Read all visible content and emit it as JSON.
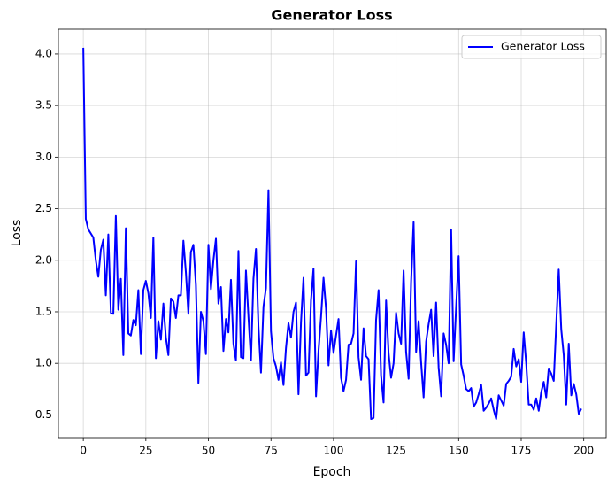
{
  "chart_data": {
    "type": "line",
    "title": "Generator Loss",
    "xlabel": "Epoch",
    "ylabel": "Loss",
    "x": [
      0,
      1,
      2,
      3,
      4,
      5,
      6,
      7,
      8,
      9,
      10,
      11,
      12,
      13,
      14,
      15,
      16,
      17,
      18,
      19,
      20,
      21,
      22,
      23,
      24,
      25,
      26,
      27,
      28,
      29,
      30,
      31,
      32,
      33,
      34,
      35,
      36,
      37,
      38,
      39,
      40,
      41,
      42,
      43,
      44,
      45,
      46,
      47,
      48,
      49,
      50,
      51,
      52,
      53,
      54,
      55,
      56,
      57,
      58,
      59,
      60,
      61,
      62,
      63,
      64,
      65,
      66,
      67,
      68,
      69,
      70,
      71,
      72,
      73,
      74,
      75,
      76,
      77,
      78,
      79,
      80,
      81,
      82,
      83,
      84,
      85,
      86,
      87,
      88,
      89,
      90,
      91,
      92,
      93,
      94,
      95,
      96,
      97,
      98,
      99,
      100,
      101,
      102,
      103,
      104,
      105,
      106,
      107,
      108,
      109,
      110,
      111,
      112,
      113,
      114,
      115,
      116,
      117,
      118,
      119,
      120,
      121,
      122,
      123,
      124,
      125,
      126,
      127,
      128,
      129,
      130,
      131,
      132,
      133,
      134,
      135,
      136,
      137,
      138,
      139,
      140,
      141,
      142,
      143,
      144,
      145,
      146,
      147,
      148,
      149,
      150,
      151,
      152,
      153,
      154,
      155,
      156,
      157,
      158,
      159,
      160,
      161,
      162,
      163,
      164,
      165,
      166,
      167,
      168,
      169,
      170,
      171,
      172,
      173,
      174,
      175,
      176,
      177,
      178,
      179,
      180,
      181,
      182,
      183,
      184,
      185,
      186,
      187,
      188,
      189,
      190,
      191,
      192,
      193,
      194,
      195,
      196,
      197,
      198,
      199
    ],
    "series": [
      {
        "name": "Generator Loss",
        "color": "#0000ff",
        "values": [
          4.06,
          2.4,
          2.3,
          2.26,
          2.22,
          2.0,
          1.84,
          2.1,
          2.2,
          1.66,
          2.25,
          1.49,
          1.48,
          2.43,
          1.52,
          1.82,
          1.08,
          2.31,
          1.29,
          1.27,
          1.42,
          1.37,
          1.71,
          1.09,
          1.71,
          1.8,
          1.68,
          1.44,
          2.22,
          1.05,
          1.41,
          1.23,
          1.58,
          1.25,
          1.08,
          1.63,
          1.6,
          1.44,
          1.66,
          1.66,
          2.19,
          1.88,
          1.48,
          2.08,
          2.15,
          1.76,
          0.81,
          1.5,
          1.41,
          1.09,
          2.15,
          1.72,
          2.0,
          2.21,
          1.58,
          1.74,
          1.12,
          1.43,
          1.3,
          1.81,
          1.19,
          1.03,
          2.09,
          1.06,
          1.05,
          1.9,
          1.45,
          1.03,
          1.82,
          2.11,
          1.36,
          0.91,
          1.55,
          1.73,
          2.68,
          1.31,
          1.05,
          0.97,
          0.84,
          1.01,
          0.79,
          1.15,
          1.39,
          1.25,
          1.5,
          1.59,
          0.7,
          1.4,
          1.83,
          0.88,
          0.91,
          1.61,
          1.92,
          0.68,
          1.12,
          1.45,
          1.83,
          1.53,
          0.98,
          1.32,
          1.1,
          1.27,
          1.43,
          0.86,
          0.73,
          0.84,
          1.18,
          1.19,
          1.29,
          1.99,
          1.06,
          0.84,
          1.34,
          1.07,
          1.04,
          0.46,
          0.47,
          1.42,
          1.71,
          0.88,
          0.62,
          1.61,
          1.1,
          0.86,
          1.0,
          1.49,
          1.29,
          1.19,
          1.9,
          1.11,
          0.85,
          1.79,
          2.37,
          1.11,
          1.41,
          1.01,
          0.67,
          1.21,
          1.38,
          1.52,
          1.07,
          1.59,
          0.96,
          0.68,
          1.29,
          1.18,
          1.0,
          2.3,
          1.02,
          1.55,
          2.04,
          0.99,
          0.88,
          0.75,
          0.73,
          0.76,
          0.58,
          0.62,
          0.7,
          0.79,
          0.54,
          0.57,
          0.61,
          0.66,
          0.55,
          0.46,
          0.69,
          0.64,
          0.59,
          0.8,
          0.83,
          0.87,
          1.14,
          0.97,
          1.04,
          0.82,
          1.3,
          1.0,
          0.6,
          0.6,
          0.55,
          0.66,
          0.54,
          0.72,
          0.82,
          0.67,
          0.95,
          0.9,
          0.83,
          1.38,
          1.91,
          1.33,
          1.08,
          0.6,
          1.19,
          0.69,
          0.8,
          0.7,
          0.51,
          0.56
        ]
      }
    ],
    "xlim": [
      -9.95,
      208.95
    ],
    "xticks": [
      0,
      25,
      50,
      75,
      100,
      125,
      150,
      175,
      200
    ],
    "ylim": [
      0.28,
      4.24
    ],
    "yticks": [
      0.5,
      {
        "value": 1,
        "label": "1.0"
      },
      1.5,
      {
        "value": 2,
        "label": "2.0"
      },
      2.5,
      {
        "value": 3,
        "label": "3.0"
      },
      3.5,
      {
        "value": 4,
        "label": "4.0"
      }
    ],
    "grid": true,
    "legend": "upper-right"
  }
}
